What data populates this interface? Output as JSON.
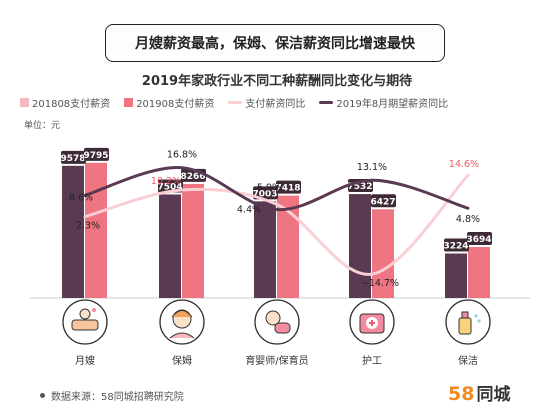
{
  "banner": "月嫂薪资最高，保姆、保洁薪资同比增速最快",
  "unit_label": "单位：元",
  "source": "数据来源：58同城招聘研究院",
  "logo": {
    "num": "58",
    "text": "同城"
  },
  "colors": {
    "s2018": "#f6b8c0",
    "s2019": "#ef7582",
    "yoy": "#f9cfd4",
    "exp": "#5a3a52",
    "label_bg": "#3d2a36",
    "yoy_text": "#e85d6a"
  },
  "icons": [
    "nanny-bath-icon",
    "caregiver-face-icon",
    "baby-care-icon",
    "medical-kit-icon",
    "cleaning-spray-icon"
  ],
  "chart_data": {
    "type": "bar",
    "title": "2019年家政行业不同工种薪酬同比变化与期待",
    "categories": [
      "月嫂",
      "保姆",
      "育婴师/保育员",
      "护工",
      "保洁"
    ],
    "series": [
      {
        "name": "201808支付薪资",
        "type": "bar",
        "values": [
          9578,
          7504,
          7003,
          7532,
          3224
        ]
      },
      {
        "name": "201908支付薪资",
        "type": "bar",
        "values": [
          9795,
          8266,
          7418,
          6427,
          3694
        ]
      },
      {
        "name": "支付薪资同比",
        "type": "line",
        "values": [
          2.3,
          10.2,
          5.9,
          -14.7,
          14.6
        ],
        "labels": [
          "2.3%",
          "10.2%",
          "5.9%",
          "−14.7%",
          "14.6%"
        ]
      },
      {
        "name": "2019年8月期望薪资同比",
        "type": "line",
        "values": [
          8.6,
          16.8,
          4.4,
          13.1,
          4.8
        ],
        "labels": [
          "8.6%",
          "16.8%",
          "4.4%",
          "13.1%",
          "4.8%"
        ]
      }
    ],
    "ylim": [
      0,
      10000
    ],
    "pct_range": [
      -20,
      25
    ],
    "legend": "top"
  }
}
